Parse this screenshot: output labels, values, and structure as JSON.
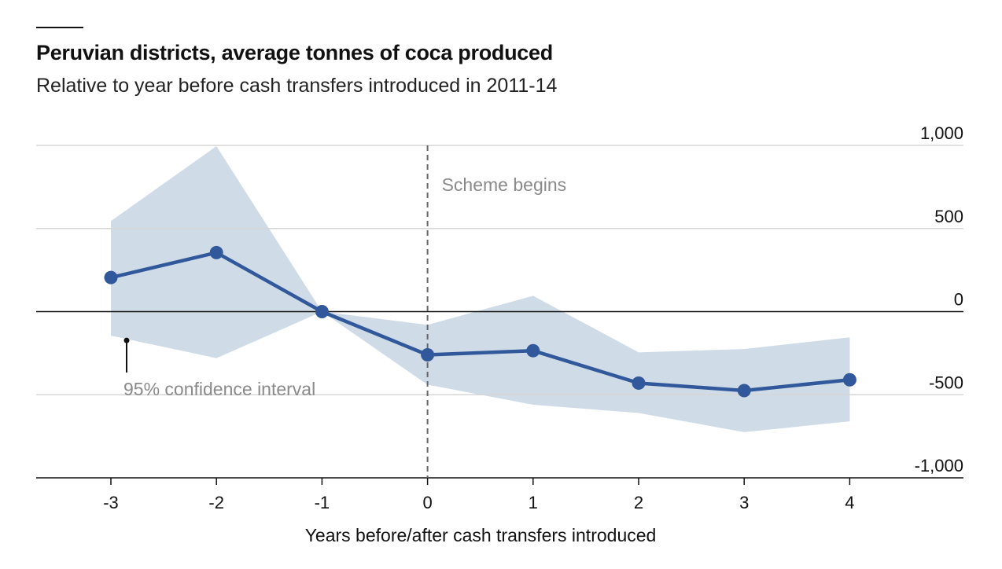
{
  "header": {
    "title": "Peruvian districts, average tonnes of coca produced",
    "subtitle": "Relative to year before cash transfers introduced in 2011-14"
  },
  "colors": {
    "line": "#30589b",
    "band": "#cfdbe7",
    "grid": "#d6d6d6",
    "zero_line": "#111111",
    "annotation": "#8a8a8a",
    "text": "#111111"
  },
  "chart_data": {
    "type": "line",
    "title": "Peruvian districts, average tonnes of coca produced",
    "subtitle": "Relative to year before cash transfers introduced in 2011-14",
    "xlabel": "Years before/after cash transfers introduced",
    "ylabel": "",
    "x": [
      -3,
      -2,
      -1,
      0,
      1,
      2,
      3,
      4
    ],
    "x_tick_labels": [
      "-3",
      "-2",
      "-1",
      "0",
      "1",
      "2",
      "3",
      "4"
    ],
    "y_ticks": [
      1000,
      500,
      0,
      -500,
      -1000
    ],
    "y_tick_labels": [
      "1,000",
      "500",
      "0",
      "-500",
      "-1,000"
    ],
    "xlim": [
      -3.7,
      5.4
    ],
    "ylim": [
      -1000,
      1000
    ],
    "axis_position": "right",
    "grid": true,
    "series": [
      {
        "values": [
          205,
          355,
          0,
          -260,
          -235,
          -430,
          -475,
          -410
        ]
      }
    ],
    "confidence_interval": {
      "label": "95% confidence interval",
      "lower": [
        -145,
        -280,
        0,
        -440,
        -560,
        -610,
        -725,
        -660
      ],
      "upper": [
        545,
        995,
        0,
        -80,
        95,
        -245,
        -225,
        -155
      ]
    },
    "annotations": [
      {
        "x": 0,
        "text": "Scheme begins"
      }
    ]
  }
}
